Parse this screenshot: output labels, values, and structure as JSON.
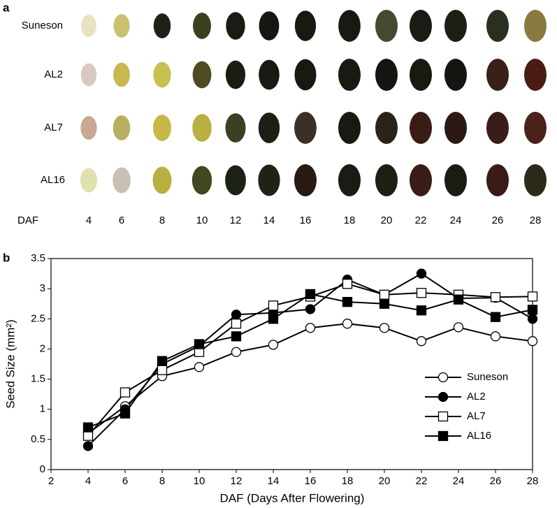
{
  "panel_a": {
    "label": "a",
    "rows": [
      "Suneson",
      "AL2",
      "AL7",
      "AL16"
    ],
    "x_label": "DAF",
    "days": [
      4,
      6,
      8,
      10,
      12,
      14,
      16,
      18,
      20,
      22,
      24,
      26,
      28
    ]
  },
  "chart_data": {
    "type": "line",
    "panel_label": "b",
    "x_label": "DAF (Days After Flowering)",
    "y_label": "Seed Size (mm²)",
    "x": [
      4,
      6,
      8,
      10,
      12,
      14,
      16,
      18,
      20,
      22,
      24,
      26,
      28
    ],
    "series": [
      {
        "name": "Suneson",
        "color": "#ffffff",
        "marker": "circle",
        "values": [
          0.6,
          1.05,
          1.55,
          1.7,
          1.95,
          2.07,
          2.35,
          2.42,
          2.35,
          2.13,
          2.36,
          2.21,
          2.13
        ]
      },
      {
        "name": "AL2",
        "color": "#000000",
        "marker": "circle",
        "values": [
          0.39,
          1.0,
          1.75,
          2.05,
          2.57,
          2.6,
          2.66,
          3.15,
          2.9,
          3.25,
          2.84,
          2.85,
          2.5
        ]
      },
      {
        "name": "AL7",
        "color": "#ffffff",
        "marker": "square",
        "values": [
          0.56,
          1.28,
          1.65,
          1.95,
          2.42,
          2.72,
          2.87,
          3.08,
          2.9,
          2.93,
          2.9,
          2.86,
          2.87
        ]
      },
      {
        "name": "AL16",
        "color": "#000000",
        "marker": "square",
        "values": [
          0.7,
          0.93,
          1.8,
          2.08,
          2.21,
          2.5,
          2.91,
          2.78,
          2.75,
          2.64,
          2.82,
          2.53,
          2.65
        ]
      }
    ],
    "xlim": [
      2,
      28
    ],
    "xticks": [
      2,
      4,
      6,
      8,
      10,
      12,
      14,
      16,
      18,
      20,
      22,
      24,
      26,
      28
    ],
    "ylim": [
      0,
      3.5
    ],
    "yticks": [
      0,
      0.5,
      1,
      1.5,
      2,
      2.5,
      3,
      3.5
    ],
    "legend": "lower right"
  }
}
